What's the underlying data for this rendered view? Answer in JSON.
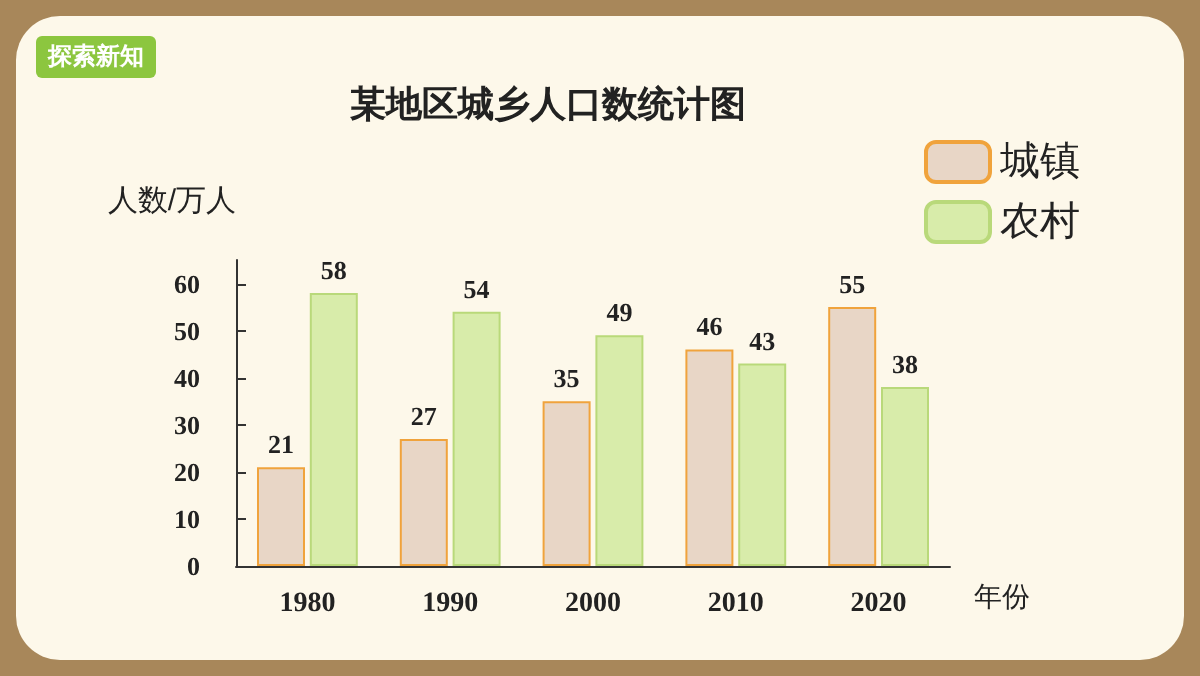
{
  "chart_data": {
    "type": "bar",
    "title": "某地区城乡人口数统计图",
    "xlabel": "年份",
    "ylabel": "人数/万人",
    "categories": [
      "1980",
      "1990",
      "2000",
      "2010",
      "2020"
    ],
    "series": [
      {
        "name": "城镇",
        "color": "#e8d6c6",
        "values": [
          21,
          27,
          35,
          46,
          55
        ]
      },
      {
        "name": "农村",
        "color": "#d8ecaa",
        "values": [
          58,
          54,
          49,
          43,
          38
        ]
      }
    ],
    "ylim": [
      0,
      65
    ],
    "yticks": [
      0,
      10,
      20,
      30,
      40,
      50,
      60
    ],
    "grid": false,
    "legend": "top right",
    "data_labels": true,
    "annotations": [
      "探索新知"
    ]
  }
}
